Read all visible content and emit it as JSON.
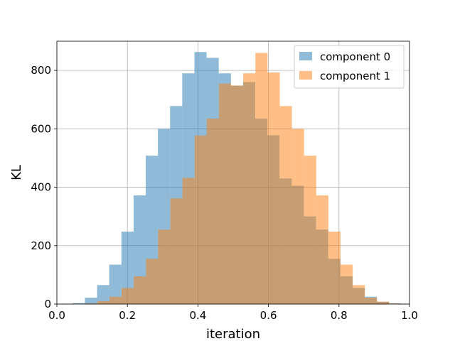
{
  "chart_data": {
    "type": "histogram",
    "xlabel": "iteration",
    "ylabel": "KL",
    "xlim": [
      0.0,
      1.0
    ],
    "ylim": [
      0,
      900
    ],
    "xticks": [
      0.0,
      0.2,
      0.4,
      0.6,
      0.8,
      1.0
    ],
    "xtick_labels": [
      "0.0",
      "0.2",
      "0.4",
      "0.6",
      "0.8",
      "1.0"
    ],
    "yticks": [
      0,
      200,
      400,
      600,
      800
    ],
    "ytick_labels": [
      "0",
      "200",
      "400",
      "600",
      "800"
    ],
    "grid": true,
    "legend": "top-right",
    "bin_width": 0.0345,
    "series": [
      {
        "name": "component 0",
        "color": "#1f77b4",
        "alpha": 0.5,
        "bins_start": 0.045,
        "counts": [
          3,
          22,
          65,
          135,
          248,
          372,
          508,
          600,
          678,
          790,
          863,
          843,
          790,
          748,
          760,
          635,
          578,
          430,
          405,
          300,
          255,
          155,
          95,
          55,
          25,
          8,
          2
        ]
      },
      {
        "name": "component 1",
        "color": "#ff7f0e",
        "alpha": 0.5,
        "bins_start": 0.08,
        "counts": [
          2,
          10,
          25,
          55,
          95,
          155,
          255,
          362,
          432,
          577,
          635,
          755,
          748,
          790,
          860,
          793,
          678,
          600,
          508,
          372,
          248,
          135,
          65,
          22,
          8,
          2
        ]
      }
    ]
  }
}
